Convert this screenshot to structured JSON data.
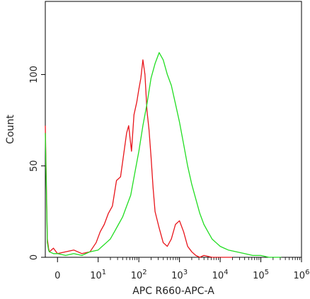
{
  "chart_data": {
    "type": "line",
    "title": "",
    "xlabel": "APC R660-APC-A",
    "ylabel": "Count",
    "x_scale": "biexponential",
    "xlim": [
      -0.3,
      6
    ],
    "ylim": [
      0,
      140
    ],
    "grid": false,
    "x_ticks": [
      {
        "value": 0,
        "base": "0",
        "exp": ""
      },
      {
        "value": 1,
        "base": "10",
        "exp": "1"
      },
      {
        "value": 2,
        "base": "10",
        "exp": "2"
      },
      {
        "value": 3,
        "base": "10",
        "exp": "3"
      },
      {
        "value": 4,
        "base": "10",
        "exp": "4"
      },
      {
        "value": 5,
        "base": "10",
        "exp": "5"
      },
      {
        "value": 6,
        "base": "10",
        "exp": "6"
      }
    ],
    "y_ticks": [
      {
        "value": 0,
        "label": "0"
      },
      {
        "value": 50,
        "label": "50"
      },
      {
        "value": 100,
        "label": "100"
      }
    ],
    "series": [
      {
        "color": "#e8141a",
        "x": [
          -0.3,
          -0.25,
          -0.22,
          -0.2,
          -0.1,
          0,
          0.2,
          0.4,
          0.6,
          0.8,
          0.95,
          1.05,
          1.15,
          1.25,
          1.35,
          1.45,
          1.55,
          1.6,
          1.7,
          1.75,
          1.82,
          1.88,
          1.95,
          2.0,
          2.05,
          2.1,
          2.15,
          2.2,
          2.25,
          2.3,
          2.35,
          2.4,
          2.5,
          2.6,
          2.7,
          2.8,
          2.9,
          3.0,
          3.1,
          3.2,
          3.3,
          3.4,
          3.5,
          3.6,
          3.8,
          4.0,
          4.3
        ],
        "y": [
          72,
          10,
          5,
          3,
          5,
          2,
          3,
          4,
          2,
          3,
          8,
          14,
          18,
          24,
          28,
          42,
          44,
          52,
          68,
          72,
          58,
          78,
          85,
          92,
          98,
          108,
          100,
          80,
          70,
          55,
          38,
          25,
          16,
          8,
          6,
          10,
          18,
          20,
          14,
          6,
          3,
          1,
          0,
          1,
          0,
          0,
          0
        ]
      },
      {
        "color": "#22dd22",
        "x": [
          -0.3,
          -0.25,
          -0.22,
          -0.2,
          -0.1,
          0,
          0.2,
          0.4,
          0.6,
          0.8,
          1.0,
          1.1,
          1.2,
          1.3,
          1.4,
          1.5,
          1.6,
          1.7,
          1.8,
          1.9,
          2.0,
          2.1,
          2.2,
          2.3,
          2.4,
          2.5,
          2.6,
          2.7,
          2.8,
          2.9,
          3.0,
          3.1,
          3.2,
          3.3,
          3.4,
          3.5,
          3.6,
          3.7,
          3.8,
          3.9,
          4.0,
          4.1,
          4.2,
          4.4,
          4.6,
          4.8,
          5.0,
          5.2,
          5.5
        ],
        "y": [
          68,
          8,
          4,
          3,
          2,
          2,
          1,
          2,
          1,
          3,
          4,
          6,
          8,
          10,
          14,
          18,
          22,
          28,
          34,
          46,
          58,
          72,
          84,
          98,
          106,
          112,
          108,
          100,
          94,
          84,
          74,
          62,
          50,
          40,
          32,
          24,
          18,
          14,
          10,
          8,
          6,
          5,
          4,
          3,
          2,
          1,
          1,
          0,
          0
        ]
      }
    ]
  }
}
